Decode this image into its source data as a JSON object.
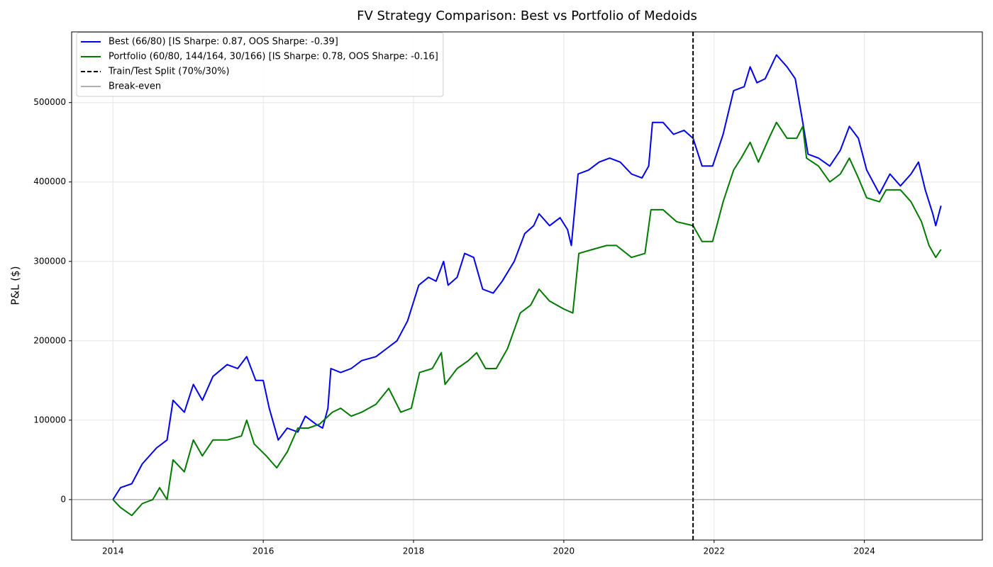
{
  "chart_data": {
    "type": "line",
    "title": "FV Strategy Comparison: Best vs Portfolio of Medoids",
    "y_label": "P&L ($)",
    "xlim": [
      2013.45,
      2025.57
    ],
    "ylim": [
      -51000,
      589000
    ],
    "xticks": [
      2014,
      2016,
      2018,
      2020,
      2022,
      2024
    ],
    "yticks": [
      0,
      100000,
      200000,
      300000,
      400000,
      500000
    ],
    "grid": true,
    "legend": "upper left",
    "series": [
      {
        "name": "Best (66/80) [IS Sharpe: 0.87, OOS Sharpe: -0.39]",
        "color": "#0000ee",
        "x": [
          2014.0,
          2014.1,
          2014.25,
          2014.39,
          2014.58,
          2014.72,
          2014.8,
          2014.95,
          2015.07,
          2015.19,
          2015.33,
          2015.52,
          2015.66,
          2015.78,
          2015.9,
          2016.0,
          2016.08,
          2016.2,
          2016.32,
          2016.46,
          2016.56,
          2016.7,
          2016.79,
          2016.86,
          2016.9,
          2017.03,
          2017.17,
          2017.31,
          2017.5,
          2017.64,
          2017.78,
          2017.92,
          2018.07,
          2018.2,
          2018.3,
          2018.4,
          2018.46,
          2018.58,
          2018.68,
          2018.8,
          2018.92,
          2019.06,
          2019.18,
          2019.34,
          2019.48,
          2019.6,
          2019.67,
          2019.81,
          2019.95,
          2020.05,
          2020.1,
          2020.19,
          2020.33,
          2020.47,
          2020.61,
          2020.75,
          2020.9,
          2021.04,
          2021.13,
          2021.18,
          2021.32,
          2021.46,
          2021.6,
          2021.72,
          2021.84,
          2021.98,
          2022.12,
          2022.26,
          2022.4,
          2022.48,
          2022.57,
          2022.68,
          2022.83,
          2022.97,
          2023.08,
          2023.18,
          2023.25,
          2023.39,
          2023.54,
          2023.68,
          2023.8,
          2023.92,
          2024.03,
          2024.2,
          2024.34,
          2024.48,
          2024.62,
          2024.72,
          2024.81,
          2024.91,
          2024.95,
          2025.02
        ],
        "values": [
          0,
          15000,
          20000,
          45000,
          65000,
          75000,
          125000,
          110000,
          145000,
          125000,
          155000,
          170000,
          165000,
          180000,
          150000,
          150000,
          115000,
          75000,
          90000,
          85000,
          105000,
          95000,
          90000,
          115000,
          165000,
          160000,
          165000,
          175000,
          180000,
          190000,
          200000,
          225000,
          270000,
          280000,
          275000,
          300000,
          270000,
          280000,
          310000,
          305000,
          265000,
          260000,
          275000,
          300000,
          335000,
          345000,
          360000,
          345000,
          355000,
          340000,
          320000,
          410000,
          415000,
          425000,
          430000,
          425000,
          410000,
          405000,
          420000,
          475000,
          475000,
          460000,
          465000,
          455000,
          420000,
          420000,
          460000,
          515000,
          520000,
          545000,
          525000,
          530000,
          560000,
          545000,
          530000,
          475000,
          435000,
          430000,
          420000,
          440000,
          470000,
          455000,
          415000,
          385000,
          410000,
          395000,
          410000,
          425000,
          390000,
          360000,
          345000,
          370000
        ]
      },
      {
        "name": "Portfolio (60/80, 144/164, 30/166) [IS Sharpe: 0.78, OOS Sharpe: -0.16]",
        "color": "#007a00",
        "x": [
          2014.0,
          2014.1,
          2014.25,
          2014.39,
          2014.53,
          2014.62,
          2014.72,
          2014.8,
          2014.95,
          2015.07,
          2015.19,
          2015.33,
          2015.52,
          2015.71,
          2015.78,
          2015.88,
          2016.04,
          2016.18,
          2016.32,
          2016.46,
          2016.6,
          2016.75,
          2016.92,
          2017.03,
          2017.17,
          2017.31,
          2017.5,
          2017.67,
          2017.83,
          2017.97,
          2018.08,
          2018.25,
          2018.37,
          2018.42,
          2018.58,
          2018.73,
          2018.84,
          2018.96,
          2019.1,
          2019.25,
          2019.42,
          2019.56,
          2019.67,
          2019.81,
          2020.0,
          2020.12,
          2020.2,
          2020.38,
          2020.57,
          2020.7,
          2020.9,
          2021.08,
          2021.16,
          2021.32,
          2021.5,
          2021.72,
          2021.84,
          2021.98,
          2022.12,
          2022.26,
          2022.36,
          2022.48,
          2022.59,
          2022.73,
          2022.83,
          2022.97,
          2023.1,
          2023.18,
          2023.23,
          2023.39,
          2023.54,
          2023.68,
          2023.8,
          2023.92,
          2024.03,
          2024.2,
          2024.29,
          2024.48,
          2024.62,
          2024.76,
          2024.86,
          2024.95,
          2025.02
        ],
        "values": [
          0,
          -10000,
          -20000,
          -5000,
          0,
          15000,
          0,
          50000,
          35000,
          75000,
          55000,
          75000,
          75000,
          80000,
          100000,
          70000,
          55000,
          40000,
          60000,
          90000,
          90000,
          95000,
          110000,
          115000,
          105000,
          110000,
          120000,
          140000,
          110000,
          115000,
          160000,
          165000,
          185000,
          145000,
          165000,
          175000,
          185000,
          165000,
          165000,
          190000,
          235000,
          245000,
          265000,
          250000,
          240000,
          235000,
          310000,
          315000,
          320000,
          320000,
          305000,
          310000,
          365000,
          365000,
          350000,
          345000,
          325000,
          325000,
          375000,
          415000,
          430000,
          450000,
          425000,
          455000,
          475000,
          455000,
          455000,
          470000,
          430000,
          420000,
          400000,
          410000,
          430000,
          405000,
          380000,
          375000,
          390000,
          390000,
          375000,
          350000,
          320000,
          305000,
          315000
        ]
      }
    ],
    "split": {
      "x": 2021.72,
      "label": "Train/Test Split (70%/30%)",
      "color": "#000000"
    },
    "hline": {
      "y": 0,
      "label": "Break-even",
      "color": "#b0b0b0"
    }
  }
}
